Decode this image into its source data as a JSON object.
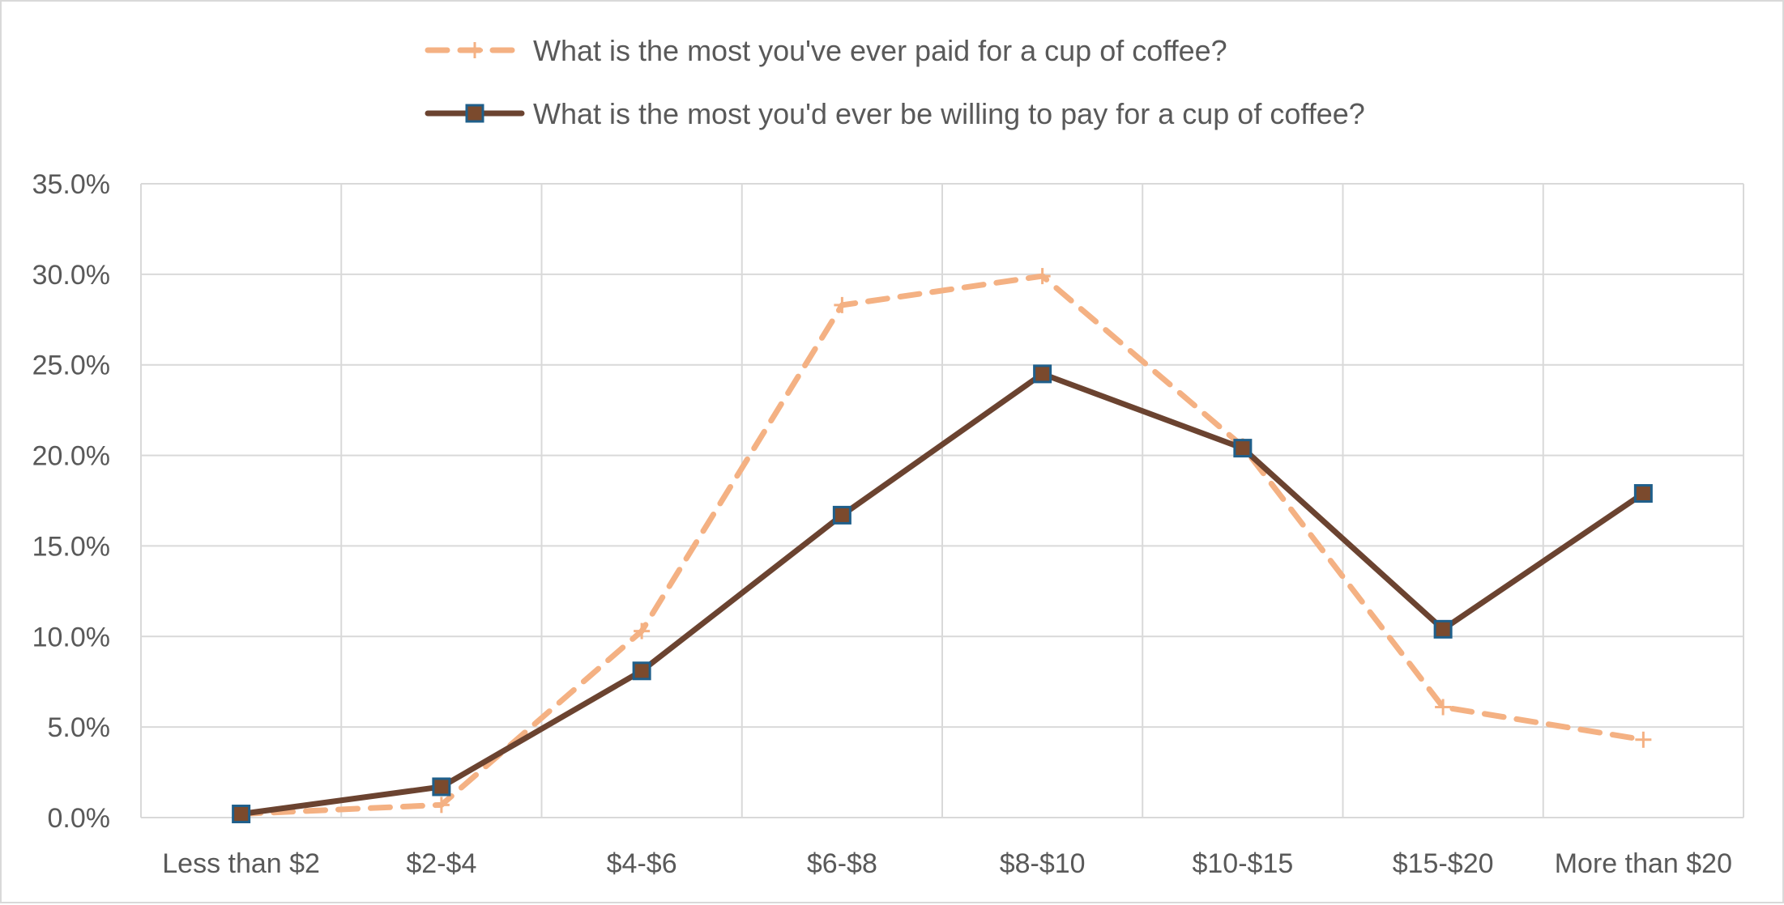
{
  "chart_data": {
    "type": "line",
    "title": "",
    "xlabel": "",
    "ylabel": "",
    "categories": [
      "Less than $2",
      "$2-$4",
      "$4-$6",
      "$6-$8",
      "$8-$10",
      "$10-$15",
      "$15-$20",
      "More than $20"
    ],
    "ylim": [
      0,
      35
    ],
    "y_ticks": [
      0,
      5,
      10,
      15,
      20,
      25,
      30,
      35
    ],
    "y_tick_labels": [
      "0.0%",
      "5.0%",
      "10.0%",
      "15.0%",
      "20.0%",
      "25.0%",
      "30.0%",
      "35.0%"
    ],
    "grid": true,
    "legend_position": "top",
    "series": [
      {
        "name": "What is the most you've ever paid for a cup of coffee?",
        "values": [
          0.2,
          0.7,
          10.3,
          28.3,
          29.9,
          20.5,
          6.1,
          4.3
        ],
        "color": "#f4b183",
        "line_style": "dashed",
        "marker": "plus"
      },
      {
        "name": "What is the most you'd ever be willing to pay for a cup of coffee?",
        "values": [
          0.2,
          1.7,
          8.1,
          16.7,
          24.5,
          20.4,
          10.4,
          17.9
        ],
        "color": "#6b4330",
        "marker_fill": "#7b4a2d",
        "marker_edge": "#1f5f8b",
        "line_style": "solid",
        "marker": "square"
      }
    ]
  },
  "colors": {
    "grid": "#d9d9d9",
    "tick_text": "#595959",
    "border": "#d9d9d9"
  }
}
